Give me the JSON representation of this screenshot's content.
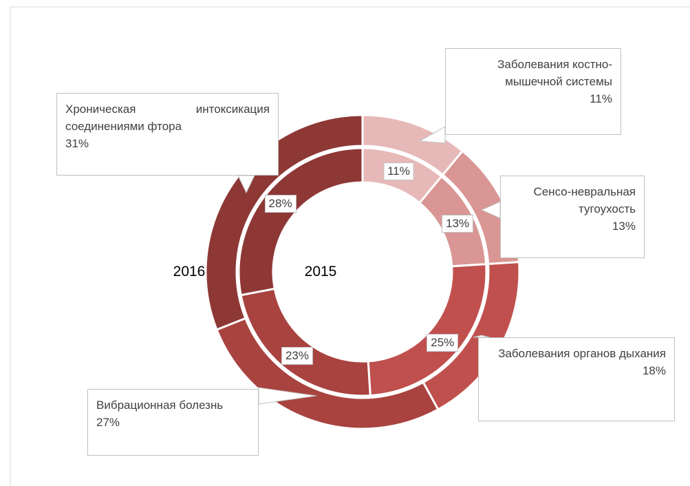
{
  "chart_data": {
    "type": "doughnut",
    "categories": [
      "Заболевания костно-мышечной системы",
      "Сенсо-невральная тугоухость",
      "Заболевания органов дыхания",
      "Вибрационная болезнь",
      "Хроническая интоксикация соединениями фтора"
    ],
    "colors": [
      "#e6b9b8",
      "#d99694",
      "#c0504d",
      "#a8433f",
      "#8e3836"
    ],
    "series": [
      {
        "name": "2016",
        "values": [
          11,
          13,
          18,
          27,
          31
        ],
        "value_labels": [
          "11%",
          "13%",
          "18%",
          "27%",
          "31%"
        ]
      },
      {
        "name": "2015",
        "values": [
          11,
          13,
          25,
          23,
          28
        ],
        "value_labels": [
          "11%",
          "13%",
          "25%",
          "23%",
          "28%"
        ]
      }
    ]
  }
}
